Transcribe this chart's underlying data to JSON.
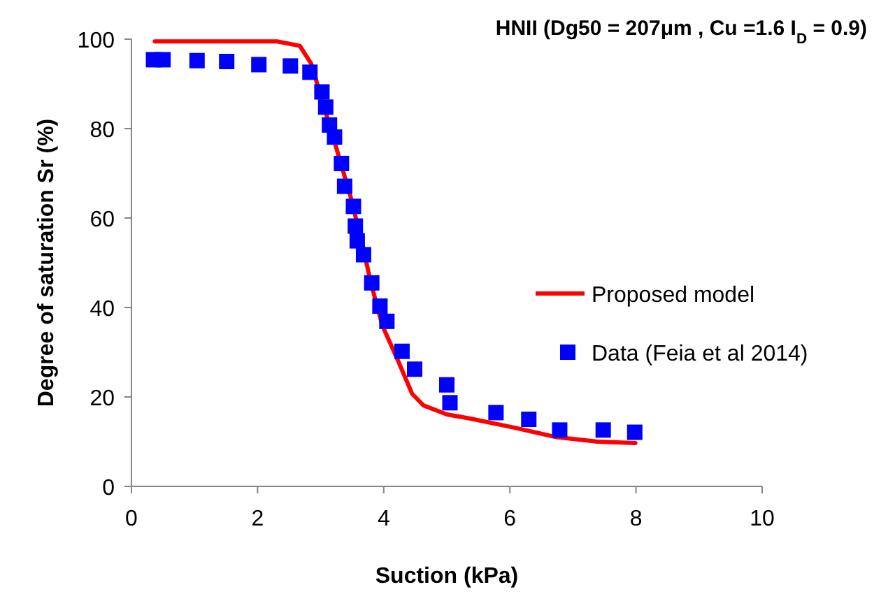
{
  "chart_data": {
    "type": "scatter",
    "title": "HNII (Dg50 = 207μm , Cu =1.6 I$_{D}$ = 0.9)",
    "xlabel": "Suction (kPa)",
    "ylabel": "Degree of saturation Sr (%)",
    "xlim": [
      0,
      10
    ],
    "xticks": [
      0,
      2,
      4,
      6,
      8,
      10
    ],
    "ylim": [
      0,
      100
    ],
    "yticks": [
      0,
      20,
      40,
      60,
      80,
      100
    ],
    "grid": false,
    "legend": "right",
    "series": [
      {
        "name": "Proposed model",
        "type": "line",
        "color": "#ff0000",
        "marker": "none",
        "line_style": "solid",
        "x": [
          0.37,
          2.31,
          2.67,
          2.85,
          3.03,
          3.25,
          3.47,
          3.65,
          3.8,
          3.98,
          4.23,
          4.45,
          4.63,
          5.0,
          5.36,
          6.08,
          6.74,
          7.39,
          7.99
        ],
        "values": [
          99.5,
          99.5,
          98.5,
          94.5,
          86,
          75.6,
          65,
          54.8,
          45.3,
          35.9,
          28,
          20.7,
          18.1,
          16.1,
          15.2,
          13.1,
          11,
          10,
          9.7
        ]
      },
      {
        "name": "Data (Feia et al 2014)",
        "color": "#0000ff",
        "marker": "square",
        "x": [
          0.35,
          0.5,
          1.04,
          1.51,
          2.02,
          2.52,
          2.83,
          3.02,
          3.08,
          3.14,
          3.22,
          3.33,
          3.38,
          3.52,
          3.55,
          3.58,
          3.68,
          3.81,
          3.94,
          4.05,
          4.29,
          4.49,
          5.0,
          5.05,
          5.78,
          6.3,
          6.79,
          7.48,
          7.98
        ],
        "values": [
          95.4,
          95.4,
          95.2,
          95,
          94.3,
          94,
          92.6,
          88.2,
          84.8,
          80.8,
          78.1,
          72.2,
          67.1,
          62.6,
          58.2,
          54.9,
          51.8,
          45.5,
          40.3,
          36.9,
          30.2,
          26.2,
          22.7,
          18.7,
          16.5,
          15,
          12.6,
          12.6,
          12.1
        ]
      }
    ]
  }
}
